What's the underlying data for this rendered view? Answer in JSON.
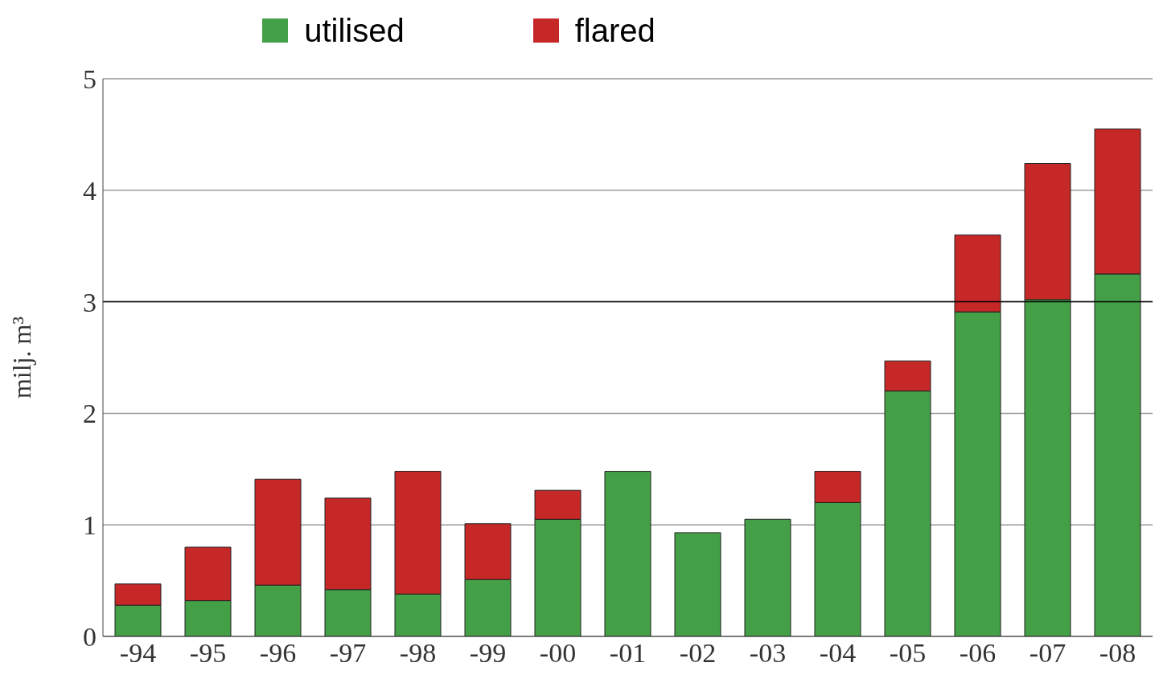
{
  "chart_data": {
    "type": "bar",
    "stacked": true,
    "ylabel": "milj. m³",
    "categories": [
      "-94",
      "-95",
      "-96",
      "-97",
      "-98",
      "-99",
      "-00",
      "-01",
      "-02",
      "-03",
      "-04",
      "-05",
      "-06",
      "-07",
      "-08"
    ],
    "series": [
      {
        "name": "utilised",
        "color": "#43a047",
        "values": [
          0.28,
          0.32,
          0.46,
          0.42,
          0.38,
          0.51,
          1.05,
          1.48,
          0.93,
          1.05,
          1.2,
          2.2,
          2.91,
          3.02,
          3.25
        ]
      },
      {
        "name": "flared",
        "color": "#c62828",
        "values": [
          0.19,
          0.48,
          0.95,
          0.82,
          1.1,
          0.5,
          0.26,
          0,
          0,
          0,
          0.28,
          0.27,
          0.69,
          1.22,
          1.3
        ]
      }
    ],
    "ylim": [
      0,
      5
    ],
    "yticks": [
      0,
      1,
      2,
      3,
      4,
      5
    ],
    "grid": "y",
    "legend": "top",
    "ref_lines": [
      {
        "axis": "y",
        "value": 3,
        "color": "#000000"
      }
    ]
  }
}
